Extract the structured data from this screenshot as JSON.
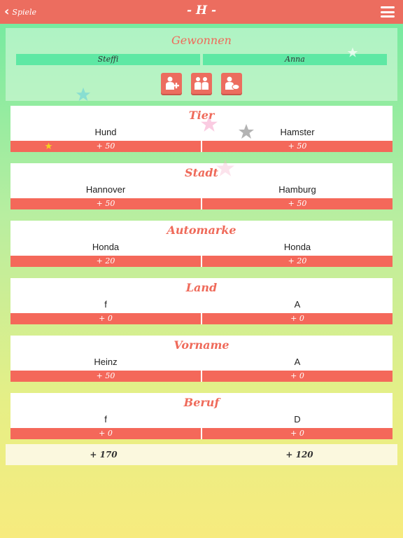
{
  "header": {
    "back_label": "Spiele",
    "title": "- H -"
  },
  "winner": {
    "title": "Gewonnen",
    "players": [
      "Steffi",
      "Anna"
    ],
    "actions": [
      "add-player-icon",
      "two-players-icon",
      "player-chat-icon"
    ]
  },
  "categories": [
    {
      "name": "Tier",
      "answers": [
        "Hund",
        "Hamster"
      ],
      "scores": [
        "+ 50",
        "+ 50"
      ]
    },
    {
      "name": "Stadt",
      "answers": [
        "Hannover",
        "Hamburg"
      ],
      "scores": [
        "+ 50",
        "+ 50"
      ]
    },
    {
      "name": "Automarke",
      "answers": [
        "Honda",
        "Honda"
      ],
      "scores": [
        "+ 20",
        "+ 20"
      ]
    },
    {
      "name": "Land",
      "answers": [
        "f",
        "A"
      ],
      "scores": [
        "+ 0",
        "+ 0"
      ]
    },
    {
      "name": "Vorname",
      "answers": [
        "Heinz",
        "A"
      ],
      "scores": [
        "+ 50",
        "+ 0"
      ]
    },
    {
      "name": "Beruf",
      "answers": [
        "f",
        "D"
      ],
      "scores": [
        "+ 0",
        "+ 0"
      ]
    }
  ],
  "totals": [
    "+ 170",
    "+ 120"
  ],
  "colors": {
    "accent": "#ec6d5f",
    "player_bar": "#5ee8a4",
    "score_bar": "#f4685a"
  }
}
